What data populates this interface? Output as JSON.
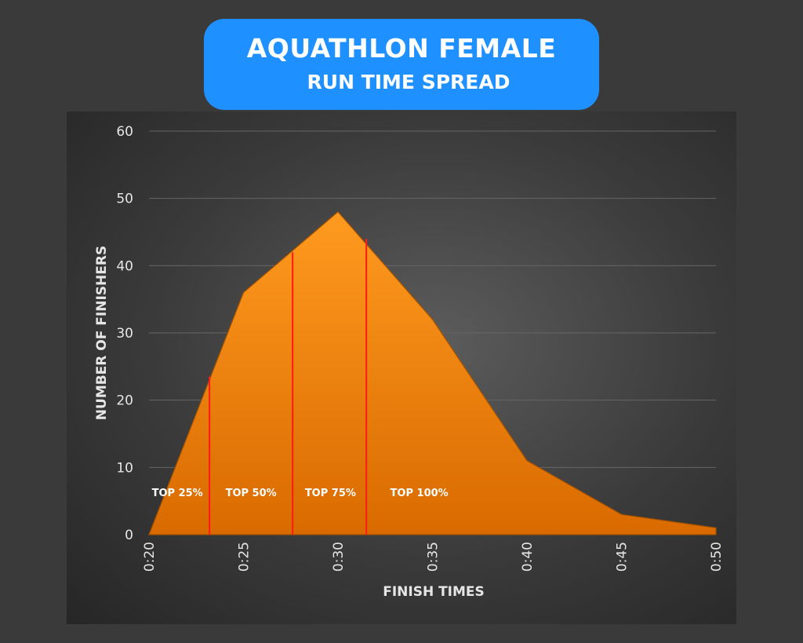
{
  "title": {
    "main": "AQUATHLON FEMALE",
    "sub": "RUN TIME SPREAD"
  },
  "colors": {
    "title_bg": "#1e90ff",
    "area_fill_top": "#ff9a1f",
    "area_fill_bottom": "#d96a00",
    "area_stroke": "#a35200",
    "divider": "#ff1a1a",
    "grid": "#666666",
    "text": "#e6e6e6"
  },
  "chart_data": {
    "type": "area",
    "title": "AQUATHLON FEMALE RUN TIME SPREAD",
    "xlabel": "FINISH TIMES",
    "ylabel": "NUMBER OF FINISHERS",
    "x": [
      "0:20",
      "0:25",
      "0:30",
      "0:35",
      "0:40",
      "0:45",
      "0:50"
    ],
    "x_minutes": [
      20,
      25,
      30,
      35,
      40,
      45,
      50
    ],
    "values": [
      0,
      36,
      48,
      32,
      11,
      3,
      1
    ],
    "ylim": [
      0,
      60
    ],
    "yticks": [
      0,
      10,
      20,
      30,
      40,
      50,
      60
    ],
    "grid": true,
    "legend": "none",
    "dividers": [
      {
        "x_minutes": 23.2,
        "top": 23.5
      },
      {
        "x_minutes": 27.6,
        "top": 42.0
      },
      {
        "x_minutes": 31.5,
        "top": 44.0
      }
    ],
    "bands": [
      {
        "label": "TOP 25%",
        "x_minutes": 21.5,
        "y": 5.7
      },
      {
        "label": "TOP 50%",
        "x_minutes": 25.4,
        "y": 5.7
      },
      {
        "label": "TOP 75%",
        "x_minutes": 29.6,
        "y": 5.7
      },
      {
        "label": "TOP 100%",
        "x_minutes": 34.3,
        "y": 5.7
      }
    ]
  }
}
